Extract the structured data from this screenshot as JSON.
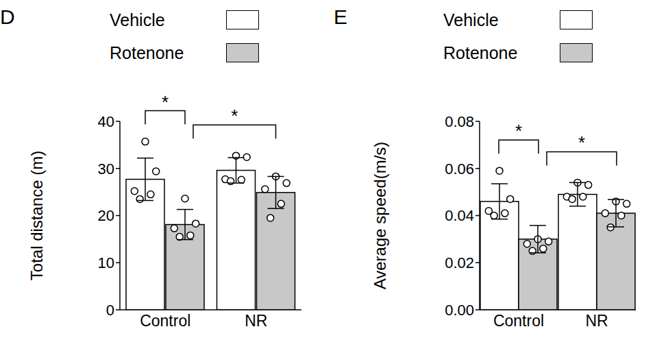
{
  "chart_data": [
    {
      "type": "bar",
      "panel": "D",
      "y_label": "Total distance (m)",
      "categories": [
        "Control",
        "NR"
      ],
      "series": [
        {
          "name": "Vehicle",
          "color": "#ffffff",
          "values": [
            27.7,
            29.6
          ],
          "errors": [
            4.5,
            2.7
          ],
          "points": [
            [
              35.7,
              29.4,
              25.2,
              24.5,
              23.5
            ],
            [
              32.7,
              32.4,
              27.7,
              27.6,
              27.3
            ]
          ]
        },
        {
          "name": "Rotenone",
          "color": "#c8c8c8",
          "values": [
            18.1,
            24.9
          ],
          "errors": [
            3.2,
            3.4
          ],
          "points": [
            [
              23.6,
              18.3,
              17.3,
              15.8,
              15.5
            ],
            [
              28.3,
              26.9,
              25.6,
              22.5,
              19.5
            ]
          ]
        }
      ],
      "ylim": [
        0,
        40
      ],
      "yticks": [
        0,
        10,
        20,
        30,
        40
      ],
      "significance": [
        {
          "label": "*",
          "from": {
            "category": "Control",
            "series": "Vehicle"
          },
          "to": {
            "category": "Control",
            "series": "Rotenone"
          }
        },
        {
          "label": "*",
          "from": {
            "category": "Control",
            "series": "Rotenone"
          },
          "to": {
            "category": "NR",
            "series": "Rotenone"
          }
        }
      ]
    },
    {
      "type": "bar",
      "panel": "E",
      "y_label": "Average speed(m/s)",
      "categories": [
        "Control",
        "NR"
      ],
      "series": [
        {
          "name": "Vehicle",
          "color": "#ffffff",
          "values": [
            0.046,
            0.049
          ],
          "errors": [
            0.0075,
            0.005
          ],
          "points": [
            [
              0.059,
              0.047,
              0.042,
              0.041,
              0.04
            ],
            [
              0.054,
              0.053,
              0.048,
              0.048,
              0.047
            ]
          ]
        },
        {
          "name": "Rotenone",
          "color": "#c8c8c8",
          "values": [
            0.03,
            0.041
          ],
          "errors": [
            0.0058,
            0.0058
          ],
          "points": [
            [
              0.03,
              0.029,
              0.028,
              0.026,
              0.025
            ],
            [
              0.046,
              0.045,
              0.041,
              0.04,
              0.035
            ]
          ]
        }
      ],
      "ylim": [
        0,
        0.08
      ],
      "yticks": [
        {
          "value": 0,
          "label": "0.00"
        },
        {
          "value": 0.02,
          "label": "0.02"
        },
        {
          "value": 0.04,
          "label": "0.04"
        },
        {
          "value": 0.06,
          "label": "0.06"
        },
        {
          "value": 0.08,
          "label": "0.08"
        }
      ],
      "significance": [
        {
          "label": "*",
          "from": {
            "category": "Control",
            "series": "Vehicle"
          },
          "to": {
            "category": "Control",
            "series": "Rotenone"
          }
        },
        {
          "label": "*",
          "from": {
            "category": "Control",
            "series": "Rotenone"
          },
          "to": {
            "category": "NR",
            "series": "Rotenone"
          }
        }
      ]
    }
  ]
}
